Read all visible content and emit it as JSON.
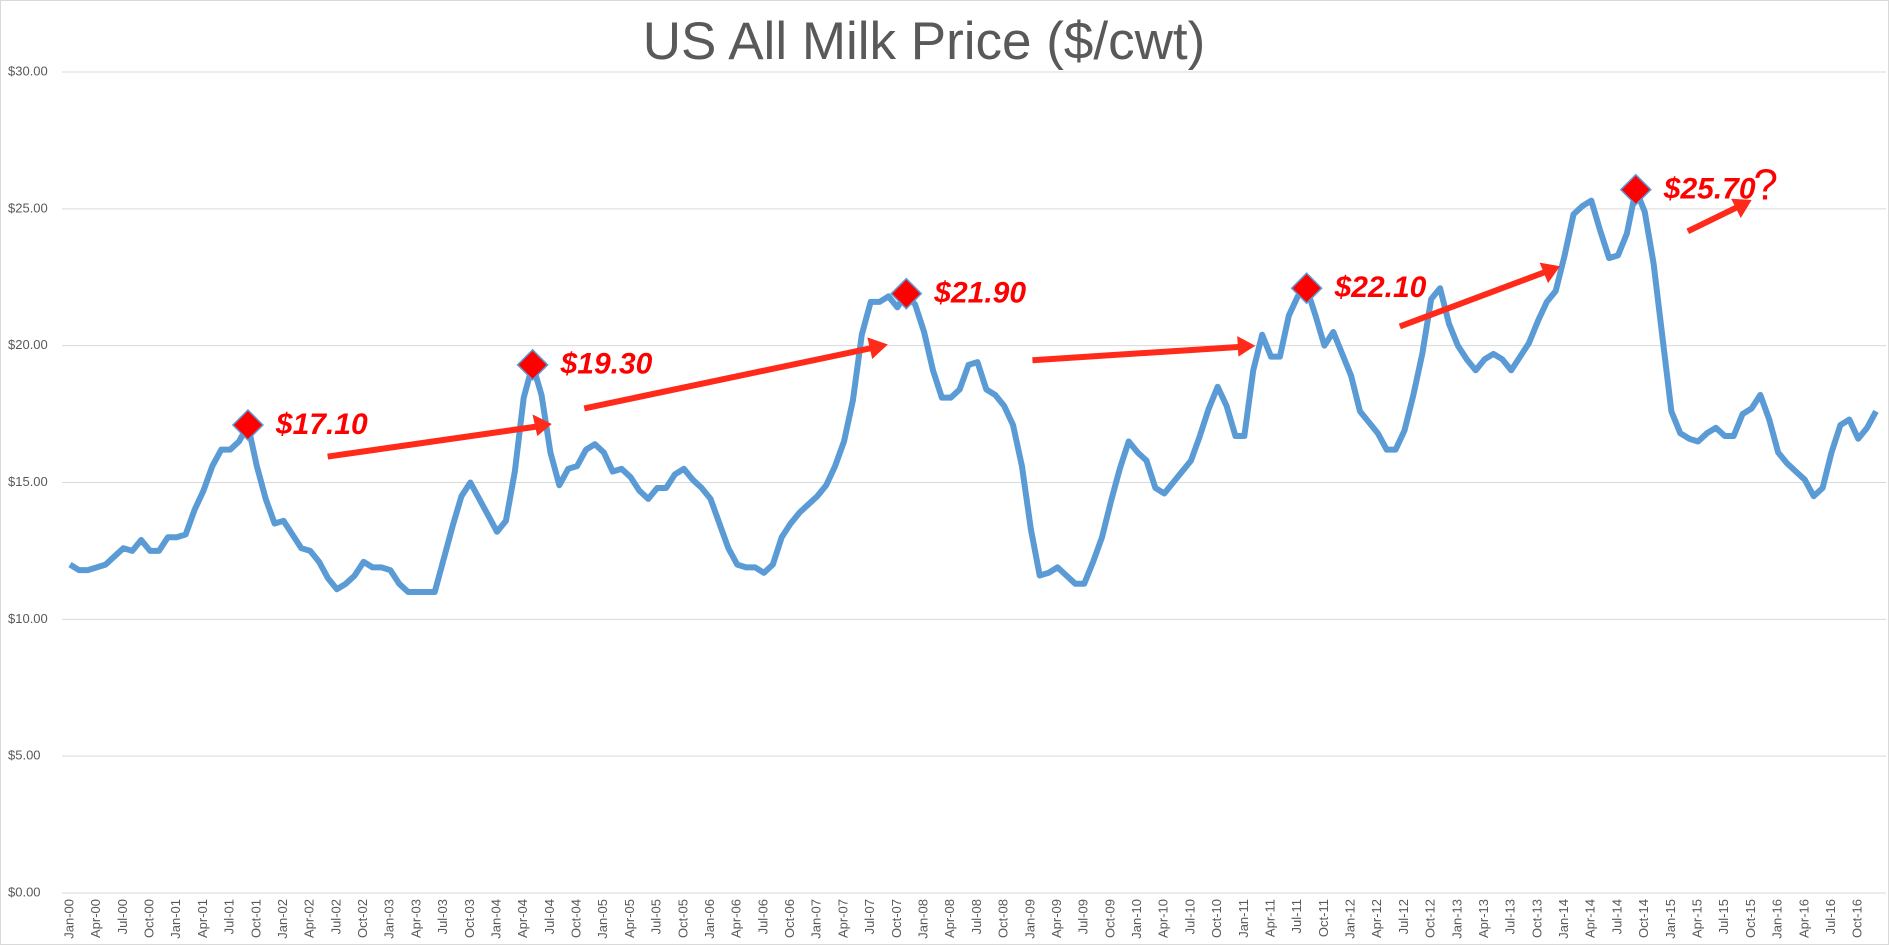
{
  "chart_data": {
    "type": "line",
    "title": "US All Milk Price ($/cwt)",
    "categories": [
      "Jan-00",
      null,
      null,
      "Apr-00",
      null,
      null,
      "Jul-00",
      null,
      null,
      "Oct-00",
      null,
      null,
      "Jan-01",
      null,
      null,
      "Apr-01",
      null,
      null,
      "Jul-01",
      null,
      null,
      "Oct-01",
      null,
      null,
      "Jan-02",
      null,
      null,
      "Apr-02",
      null,
      null,
      "Jul-02",
      null,
      null,
      "Oct-02",
      null,
      null,
      "Jan-03",
      null,
      null,
      "Apr-03",
      null,
      null,
      "Jul-03",
      null,
      null,
      "Oct-03",
      null,
      null,
      "Jan-04",
      null,
      null,
      "Apr-04",
      null,
      null,
      "Jul-04",
      null,
      null,
      "Oct-04",
      null,
      null,
      "Jan-05",
      null,
      null,
      "Apr-05",
      null,
      null,
      "Jul-05",
      null,
      null,
      "Oct-05",
      null,
      null,
      "Jan-06",
      null,
      null,
      "Apr-06",
      null,
      null,
      "Jul-06",
      null,
      null,
      "Oct-06",
      null,
      null,
      "Jan-07",
      null,
      null,
      "Apr-07",
      null,
      null,
      "Jul-07",
      null,
      null,
      "Oct-07",
      null,
      null,
      "Jan-08",
      null,
      null,
      "Apr-08",
      null,
      null,
      "Jul-08",
      null,
      null,
      "Oct-08",
      null,
      null,
      "Jan-09",
      null,
      null,
      "Apr-09",
      null,
      null,
      "Jul-09",
      null,
      null,
      "Oct-09",
      null,
      null,
      "Jan-10",
      null,
      null,
      "Apr-10",
      null,
      null,
      "Jul-10",
      null,
      null,
      "Oct-10",
      null,
      null,
      "Jan-11",
      null,
      null,
      "Apr-11",
      null,
      null,
      "Jul-11",
      null,
      null,
      "Oct-11",
      null,
      null,
      "Jan-12",
      null,
      null,
      "Apr-12",
      null,
      null,
      "Jul-12",
      null,
      null,
      "Oct-12",
      null,
      null,
      "Jan-13",
      null,
      null,
      "Apr-13",
      null,
      null,
      "Jul-13",
      null,
      null,
      "Oct-13",
      null,
      null,
      "Jan-14",
      null,
      null,
      "Apr-14",
      null,
      null,
      "Jul-14",
      null,
      null,
      "Oct-14",
      null,
      null,
      "Jan-15",
      null,
      null,
      "Apr-15",
      null,
      null,
      "Jul-15",
      null,
      null,
      "Oct-15",
      null,
      null,
      "Jan-16",
      null,
      null,
      "Apr-16",
      null,
      null,
      "Jul-16",
      null,
      null,
      "Oct-16",
      null,
      null
    ],
    "values": [
      12.0,
      11.8,
      11.8,
      11.9,
      12.0,
      12.3,
      12.6,
      12.5,
      12.9,
      12.5,
      12.5,
      13.0,
      13.0,
      13.1,
      14.0,
      14.7,
      15.6,
      16.2,
      16.2,
      16.5,
      17.1,
      15.6,
      14.4,
      13.5,
      13.6,
      13.1,
      12.6,
      12.5,
      12.1,
      11.5,
      11.1,
      11.3,
      11.6,
      12.1,
      11.9,
      11.9,
      11.8,
      11.3,
      11.0,
      11.0,
      11.0,
      11.0,
      12.2,
      13.4,
      14.5,
      15.0,
      14.4,
      13.8,
      13.2,
      13.6,
      15.4,
      18.1,
      19.3,
      18.2,
      16.1,
      14.9,
      15.5,
      15.6,
      16.2,
      16.4,
      16.1,
      15.4,
      15.5,
      15.2,
      14.7,
      14.4,
      14.8,
      14.8,
      15.3,
      15.5,
      15.1,
      14.8,
      14.4,
      13.5,
      12.6,
      12.0,
      11.9,
      11.9,
      11.7,
      12.0,
      13.0,
      13.5,
      13.9,
      14.2,
      14.5,
      14.9,
      15.6,
      16.5,
      18.0,
      20.4,
      21.6,
      21.6,
      21.8,
      21.4,
      21.9,
      21.5,
      20.5,
      19.1,
      18.1,
      18.1,
      18.4,
      19.3,
      19.4,
      18.4,
      18.2,
      17.8,
      17.1,
      15.6,
      13.3,
      11.6,
      11.7,
      11.9,
      11.6,
      11.3,
      11.3,
      12.1,
      13.0,
      14.3,
      15.5,
      16.5,
      16.1,
      15.8,
      14.8,
      14.6,
      15.0,
      15.4,
      15.8,
      16.7,
      17.7,
      18.5,
      17.8,
      16.7,
      16.7,
      19.1,
      20.4,
      19.6,
      19.6,
      21.1,
      21.8,
      22.1,
      21.1,
      20.0,
      20.5,
      19.7,
      18.9,
      17.6,
      17.2,
      16.8,
      16.2,
      16.2,
      16.9,
      18.2,
      19.7,
      21.7,
      22.1,
      20.8,
      20.0,
      19.5,
      19.1,
      19.5,
      19.7,
      19.5,
      19.1,
      19.6,
      20.1,
      20.9,
      21.6,
      22.0,
      23.3,
      24.8,
      25.1,
      25.3,
      24.2,
      23.2,
      23.3,
      24.1,
      25.7,
      24.9,
      23.0,
      20.3,
      17.6,
      16.8,
      16.6,
      16.5,
      16.8,
      17.0,
      16.7,
      16.7,
      17.5,
      17.7,
      18.2,
      17.3,
      16.1,
      15.7,
      15.4,
      15.1,
      14.5,
      14.8,
      16.1,
      17.1,
      17.3,
      16.6,
      17.0,
      17.6
    ],
    "color": "#5b9bd5",
    "ylim": [
      0,
      30
    ],
    "yticks": [
      {
        "value": 0,
        "label": "$0.00"
      },
      {
        "value": 5,
        "label": "$5.00"
      },
      {
        "value": 10,
        "label": "$10.00"
      },
      {
        "value": 15,
        "label": "$15.00"
      },
      {
        "value": 20,
        "label": "$20.00"
      },
      {
        "value": 25,
        "label": "$25.00"
      },
      {
        "value": 30,
        "label": "$30.00"
      }
    ],
    "grid": true,
    "annotations": [
      {
        "text": "$17.10",
        "value": 17.1
      },
      {
        "text": "$19.30",
        "value": 19.3
      },
      {
        "text": "$21.90",
        "value": 21.9
      },
      {
        "text": "$22.10",
        "value": 22.1
      },
      {
        "text": "$25.70",
        "value": 25.7,
        "note": "?"
      }
    ],
    "marker_color": "#ff0000"
  }
}
